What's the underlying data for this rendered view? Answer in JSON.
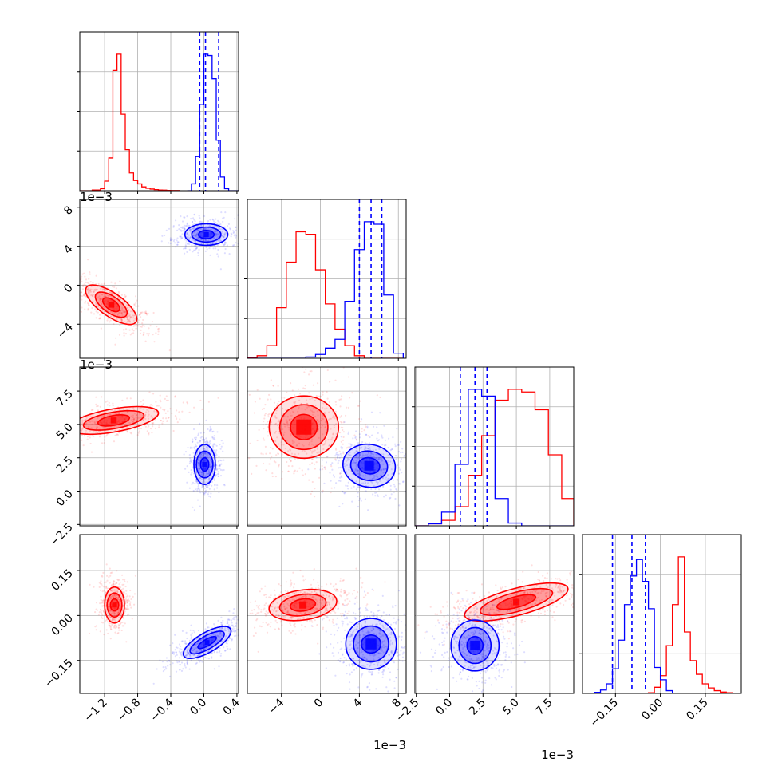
{
  "chart_data": {
    "type": "corner",
    "grid": true,
    "parameters": [
      {
        "range": [
          -1.5,
          0.42
        ],
        "ticks": [
          -1.2,
          -0.8,
          -0.4,
          0.0,
          0.4
        ],
        "tick_labels": [
          "−1.2",
          "−0.8",
          "−0.4",
          "0.0",
          "0.4"
        ],
        "offset_label": ""
      },
      {
        "range": [
          -7.5,
          8.8
        ],
        "ticks": [
          -4,
          0,
          4,
          8
        ],
        "tick_labels": [
          "−4",
          "0",
          "4",
          "8"
        ],
        "offset_label": "1e−3"
      },
      {
        "range": [
          -2.6,
          9.3
        ],
        "ticks": [
          -2.5,
          0.0,
          2.5,
          5.0,
          7.5
        ],
        "tick_labels": [
          "−2.5",
          "0.0",
          "2.5",
          "5.0",
          "7.5"
        ],
        "offset_label": "1e−3"
      },
      {
        "range": [
          -0.26,
          0.27
        ],
        "ticks": [
          -0.15,
          0.0,
          0.15
        ],
        "tick_labels": [
          "−0.15",
          "0.00",
          "0.15"
        ],
        "offset_label": ""
      }
    ],
    "series": [
      {
        "color": "#ff0000",
        "marginals": [
          {
            "edges": [
              -1.5,
              -1.45,
              -1.4,
              -1.35,
              -1.3,
              -1.25,
              -1.2,
              -1.15,
              -1.1,
              -1.05,
              -1.0,
              -0.95,
              -0.9,
              -0.85,
              -0.8,
              -0.75,
              -0.7,
              -0.65,
              -0.6,
              -0.55,
              -0.5,
              -0.45,
              -0.4,
              -0.35,
              -0.3
            ],
            "counts": [
              0,
              0,
              0,
              5,
              5,
              15,
              70,
              240,
              880,
              1000,
              560,
              300,
              130,
              75,
              50,
              28,
              18,
              12,
              8,
              5,
              4,
              2,
              1,
              1
            ]
          },
          {
            "edges": [
              -7.5,
              -6.5,
              -5.5,
              -4.5,
              -3.5,
              -2.5,
              -1.5,
              -0.5,
              0.5,
              1.5,
              2.5,
              3.5,
              4.5,
              5.5,
              6.5,
              7.5,
              8.5
            ],
            "counts": [
              5,
              20,
              100,
              400,
              760,
              1000,
              980,
              700,
              430,
              230,
              100,
              20,
              0,
              0,
              0,
              0
            ]
          },
          {
            "edges": [
              -2.6,
              -1.6,
              -0.6,
              0.4,
              1.4,
              2.4,
              3.4,
              4.4,
              5.4,
              6.4,
              7.4,
              8.4,
              9.3
            ],
            "counts": [
              0,
              15,
              40,
              140,
              370,
              660,
              920,
              1000,
              980,
              850,
              520,
              200
            ]
          },
          {
            "edges": [
              -0.26,
              -0.24,
              -0.22,
              -0.2,
              -0.18,
              -0.16,
              -0.14,
              -0.12,
              -0.1,
              -0.08,
              -0.06,
              -0.04,
              -0.02,
              0.0,
              0.02,
              0.04,
              0.06,
              0.08,
              0.1,
              0.12,
              0.14,
              0.16,
              0.18,
              0.2,
              0.22,
              0.24,
              0.27
            ],
            "counts": [
              0,
              0,
              0,
              0,
              0,
              0,
              0,
              0,
              0,
              0,
              0,
              5,
              45,
              130,
              350,
              650,
              1000,
              450,
              240,
              140,
              70,
              40,
              20,
              10,
              5,
              0
            ]
          }
        ],
        "center": [
          -1.08,
          -1.8,
          5.2,
          0.03
        ],
        "scatter_sd": [
          0.11,
          1.7,
          1.55,
          0.03
        ],
        "contour_pairs": [
          {
            "x": 0,
            "y": 1,
            "c": [
              -1.12,
              -2.0
            ],
            "rx": [
              0.06,
              0.1,
              0.14
            ],
            "ry": [
              1.0,
              1.9,
              3.1
            ],
            "rot": -55
          },
          {
            "x": 0,
            "y": 2,
            "c": [
              -1.09,
              5.3
            ],
            "rx": [
              0.06,
              0.1,
              0.14
            ],
            "ry": [
              1.2,
              2.3,
              3.4
            ],
            "rot": 80
          },
          {
            "x": 1,
            "y": 2,
            "c": [
              -1.7,
              4.8
            ],
            "rx": [
              1.3,
              2.3,
              3.2
            ],
            "ry": [
              1.0,
              1.8,
              2.6
            ],
            "rot": 90
          },
          {
            "x": 0,
            "y": 3,
            "c": [
              -1.08,
              0.035
            ],
            "rx": [
              0.05,
              0.09,
              0.12
            ],
            "ry": [
              0.02,
              0.04,
              0.06
            ],
            "rot": 0
          },
          {
            "x": 1,
            "y": 3,
            "c": [
              -1.8,
              0.035
            ],
            "rx": [
              1.3,
              2.4,
              3.5
            ],
            "ry": [
              0.02,
              0.035,
              0.05
            ],
            "rot": -8
          },
          {
            "x": 2,
            "y": 3,
            "c": [
              5.0,
              0.045
            ],
            "rx": [
              1.5,
              2.8,
              4.0
            ],
            "ry": [
              0.018,
              0.032,
              0.045
            ],
            "rot": -15
          }
        ]
      },
      {
        "color": "#0000ff",
        "marginals": [
          {
            "edges": [
              -0.2,
              -0.15,
              -0.1,
              -0.05,
              0.0,
              0.05,
              0.1,
              0.15,
              0.2,
              0.25,
              0.3,
              0.35,
              0.42
            ],
            "counts": [
              0,
              50,
              250,
              630,
              1000,
              990,
              820,
              370,
              100,
              15,
              0,
              0
            ]
          },
          {
            "edges": [
              -7.5,
              -6.5,
              -5.5,
              -4.5,
              -3.5,
              -2.5,
              -1.5,
              -0.5,
              0.5,
              1.5,
              2.5,
              3.5,
              4.5,
              5.5,
              6.5,
              7.5,
              8.5
            ],
            "counts": [
              0,
              0,
              0,
              0,
              0,
              0,
              10,
              30,
              80,
              150,
              450,
              860,
              1080,
              1060,
              500,
              40
            ]
          },
          {
            "edges": [
              -2.6,
              -1.6,
              -0.6,
              0.4,
              1.4,
              2.4,
              3.4,
              4.4,
              5.4,
              6.4,
              7.4,
              8.4,
              9.3
            ],
            "counts": [
              0,
              15,
              100,
              450,
              1000,
              950,
              200,
              20,
              0,
              0,
              0,
              0
            ]
          },
          {
            "edges": [
              -0.26,
              -0.24,
              -0.22,
              -0.2,
              -0.18,
              -0.16,
              -0.14,
              -0.12,
              -0.1,
              -0.08,
              -0.06,
              -0.04,
              -0.02,
              0.0,
              0.02,
              0.04,
              0.06,
              0.08,
              0.1,
              0.12,
              0.14,
              0.16,
              0.18,
              0.2,
              0.22,
              0.24,
              0.27
            ],
            "counts": [
              0,
              0,
              8,
              25,
              70,
              180,
              390,
              650,
              860,
              980,
              820,
              620,
              190,
              100,
              20,
              0,
              0,
              0,
              0,
              0,
              0,
              0,
              0,
              0,
              0,
              0
            ]
          }
        ],
        "center": [
          0.02,
          5.1,
          2.0,
          -0.09
        ],
        "scatter_sd": [
          0.09,
          1.2,
          1.05,
          0.05
        ],
        "quantiles": [
          [
            -0.05,
            0.02,
            0.18
          ],
          [
            4.0,
            5.2,
            6.3
          ],
          [
            0.8,
            1.9,
            2.8
          ],
          [
            -0.16,
            -0.095,
            -0.05
          ]
        ],
        "contour_pairs": [
          {
            "x": 0,
            "y": 1,
            "c": [
              0.03,
              5.2
            ],
            "rx": [
              0.05,
              0.09,
              0.13
            ],
            "ry": [
              0.8,
              1.5,
              2.2
            ],
            "rot": 90
          },
          {
            "x": 0,
            "y": 2,
            "c": [
              0.01,
              2.0
            ],
            "rx": [
              0.05,
              0.1,
              0.13
            ],
            "ry": [
              0.5,
              1.0,
              1.5
            ],
            "rot": 0
          },
          {
            "x": 1,
            "y": 2,
            "c": [
              5.0,
              1.9
            ],
            "rx": [
              1.1,
              1.9,
              2.7
            ],
            "ry": [
              0.6,
              1.1,
              1.6
            ],
            "rot": 10
          },
          {
            "x": 0,
            "y": 3,
            "c": [
              0.04,
              -0.09
            ],
            "rx": [
              0.04,
              0.08,
              0.12
            ],
            "ry": [
              0.035,
              0.065,
              0.09
            ],
            "rot": 60
          },
          {
            "x": 1,
            "y": 3,
            "c": [
              5.2,
              -0.095
            ],
            "rx": [
              1.0,
              1.8,
              2.6
            ],
            "ry": [
              0.03,
              0.06,
              0.085
            ],
            "rot": 0
          },
          {
            "x": 2,
            "y": 3,
            "c": [
              1.9,
              -0.1
            ],
            "rx": [
              0.6,
              1.2,
              1.8
            ],
            "ry": [
              0.03,
              0.06,
              0.085
            ],
            "rot": 0
          }
        ]
      }
    ]
  }
}
